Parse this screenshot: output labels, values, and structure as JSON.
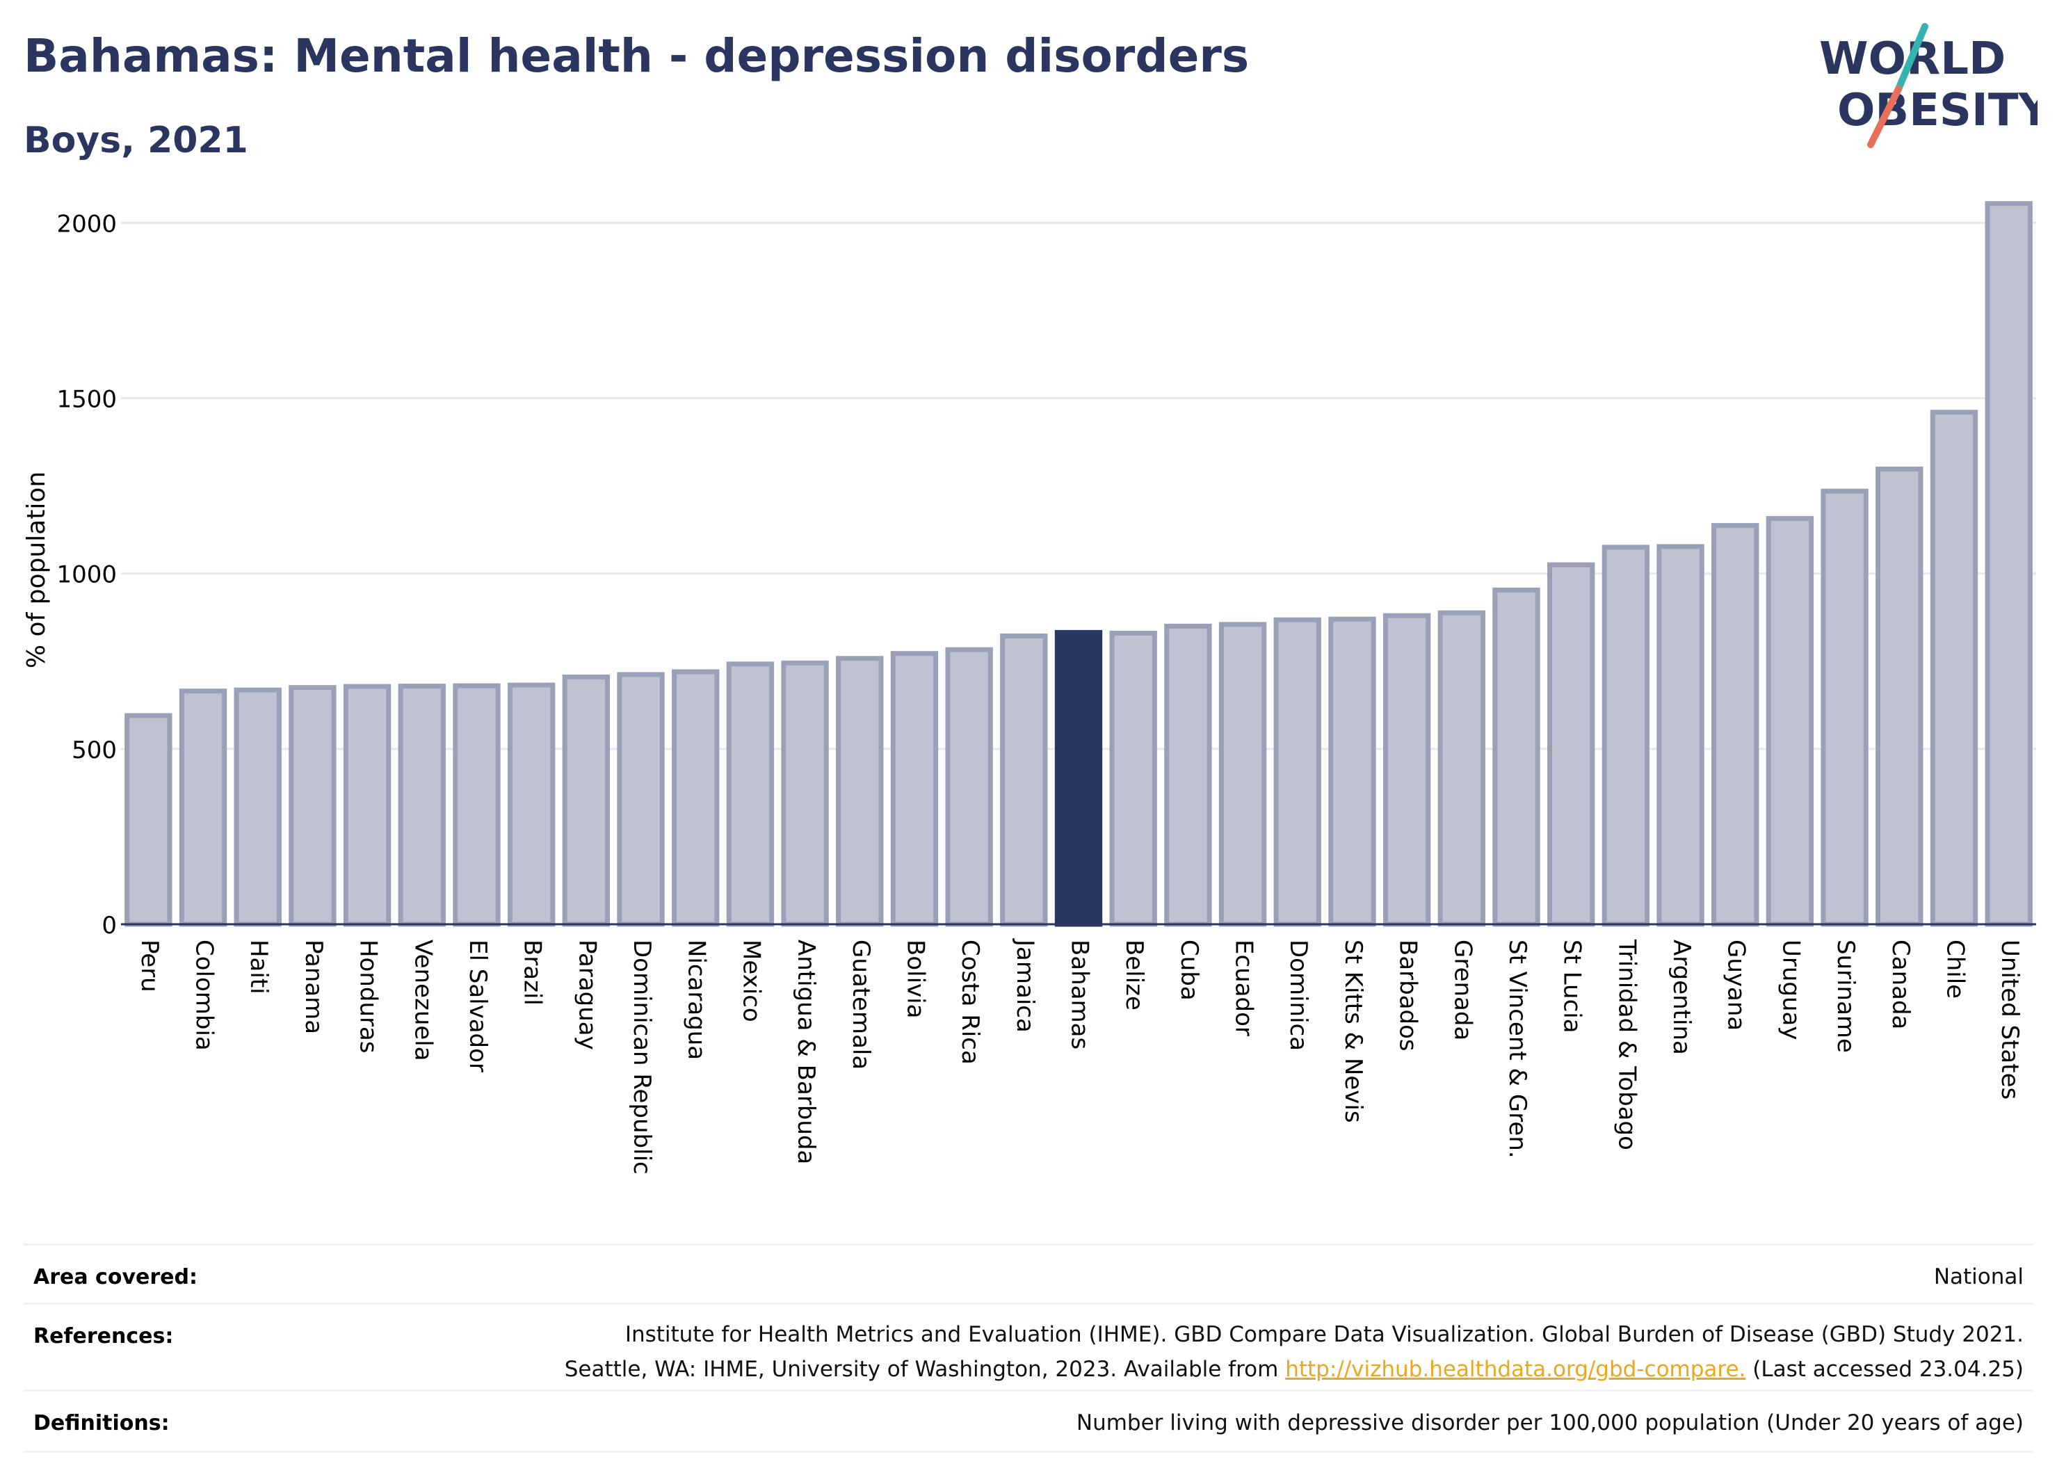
{
  "header": {
    "title": "Bahamas: Mental health - depression disorders",
    "subtitle": "Boys, 2021"
  },
  "logo": {
    "line1": "WORLD",
    "line2": "OBESITY",
    "colors": {
      "text": "#2b3660",
      "slash_top": "#36b3b0",
      "slash_bottom": "#e8705a"
    }
  },
  "chart_data": {
    "type": "bar",
    "ylabel": "% of population",
    "xlabel": "",
    "ylim": [
      0,
      2100
    ],
    "yticks": [
      0,
      500,
      1000,
      1500,
      2000
    ],
    "grid": true,
    "highlight": "Bahamas",
    "colors": {
      "bar": "#bfc3d1",
      "bar_edge": "#9aa0b8",
      "highlight": "#2b3660"
    },
    "categories": [
      "Peru",
      "Colombia",
      "Haiti",
      "Panama",
      "Honduras",
      "Venezuela",
      "El Salvador",
      "Brazil",
      "Paraguay",
      "Dominican Republic",
      "Nicaragua",
      "Mexico",
      "Antigua & Barbuda",
      "Guatemala",
      "Bolivia",
      "Costa Rica",
      "Jamaica",
      "Bahamas",
      "Belize",
      "Cuba",
      "Ecuador",
      "Dominica",
      "St Kitts & Nevis",
      "Barbados",
      "Grenada",
      "St Vincent & Gren.",
      "St Lucia",
      "Trinidad & Tobago",
      "Argentina",
      "Guyana",
      "Uruguay",
      "Suriname",
      "Canada",
      "Chile",
      "United States"
    ],
    "values": [
      595,
      665,
      668,
      675,
      678,
      679,
      680,
      682,
      705,
      712,
      720,
      742,
      745,
      758,
      772,
      783,
      822,
      832,
      830,
      850,
      855,
      868,
      870,
      880,
      888,
      953,
      1025,
      1075,
      1077,
      1137,
      1157,
      1235,
      1298,
      1460,
      2055
    ]
  },
  "footer": {
    "area_label": "Area covered:",
    "area_value": "National",
    "references_label": "References:",
    "references_line1": "Institute for Health Metrics and Evaluation (IHME). GBD Compare Data Visualization. Global Burden of Disease (GBD) Study 2021.",
    "references_line2_prefix": "Seattle, WA: IHME, University of Washington, 2023. Available from",
    "references_link": "http://vizhub.healthdata.org/gbd-compare.",
    "references_line2_suffix": "(Last accessed 23.04.25)",
    "definitions_label": "Definitions:",
    "definitions_value": "Number living with depressive disorder per 100,000 population (Under 20 years of age)"
  }
}
